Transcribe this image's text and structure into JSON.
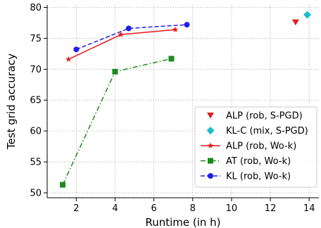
{
  "chart_data": {
    "type": "scatter",
    "xlabel": "Runtime (in h)",
    "ylabel": "Test grid accuracy",
    "xlim": [
      0.5,
      14.5
    ],
    "ylim": [
      49.2,
      80.4
    ],
    "xticks": [
      2,
      4,
      6,
      8,
      10,
      12,
      14
    ],
    "yticks": [
      50,
      55,
      60,
      65,
      70,
      75,
      80
    ],
    "grid": true,
    "legend_position": "lower-right",
    "series": [
      {
        "name": "ALP (rob, S-PGD)",
        "color": "#e41a1c",
        "marker": "triangle-down",
        "line": "none",
        "x": [
          13.3
        ],
        "y": [
          77.6
        ]
      },
      {
        "name": "KL-C (mix, S-PGD)",
        "color": "#17becf",
        "marker": "diamond",
        "line": "none",
        "x": [
          13.9
        ],
        "y": [
          78.8
        ]
      },
      {
        "name": "ALP (rob, Wo-k)",
        "color": "#e41a1c",
        "marker": "star",
        "line": "solid",
        "x": [
          1.6,
          4.3,
          7.1
        ],
        "y": [
          71.6,
          75.6,
          76.4
        ]
      },
      {
        "name": "AT (rob, Wo-k)",
        "color": "#1a8a1a",
        "marker": "square",
        "line": "dashdot",
        "x": [
          1.3,
          4.0,
          6.9
        ],
        "y": [
          51.3,
          69.6,
          71.7
        ]
      },
      {
        "name": "KL (rob, Wo-k)",
        "color": "#1f1fe6",
        "marker": "circle",
        "line": "dashed",
        "x": [
          2.0,
          4.7,
          7.7
        ],
        "y": [
          73.2,
          76.6,
          77.2
        ]
      }
    ]
  }
}
